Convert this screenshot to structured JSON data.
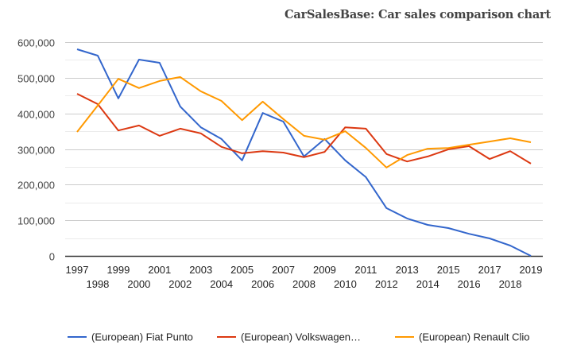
{
  "header": {
    "title": "CarSalesBase: Car sales comparison chart"
  },
  "chart_data": {
    "type": "line",
    "title": "CarSalesBase: Car sales comparison chart",
    "xlabel": "",
    "ylabel": "",
    "x": [
      1997,
      1998,
      1999,
      2000,
      2001,
      2002,
      2003,
      2004,
      2005,
      2006,
      2007,
      2008,
      2009,
      2010,
      2011,
      2012,
      2013,
      2014,
      2015,
      2016,
      2017,
      2018,
      2019
    ],
    "x_tick_labels": [
      "1997",
      "1998",
      "1999",
      "2000",
      "2001",
      "2002",
      "2003",
      "2004",
      "2005",
      "2006",
      "2007",
      "2008",
      "2009",
      "2010",
      "2011",
      "2012",
      "2013",
      "2014",
      "2015",
      "2016",
      "2017",
      "2018",
      "2019"
    ],
    "ylim": [
      0,
      600000
    ],
    "y_ticks": [
      0,
      100000,
      200000,
      300000,
      400000,
      500000,
      600000
    ],
    "y_tick_labels": [
      "0",
      "100,000",
      "200,000",
      "300,000",
      "400,000",
      "500,000",
      "600,000"
    ],
    "grid": true,
    "legend_position": "bottom",
    "series": [
      {
        "name": "(European) Fiat Punto",
        "color": "#3366cc",
        "values": [
          580000,
          562000,
          442000,
          551000,
          542000,
          419000,
          361000,
          328000,
          268000,
          401000,
          377000,
          279000,
          328000,
          268000,
          221000,
          134000,
          105000,
          87000,
          78000,
          62000,
          49000,
          29000,
          0
        ]
      },
      {
        "name": "(European) Volkswagen…",
        "color": "#dc3912",
        "values": [
          455000,
          426000,
          352000,
          366000,
          337000,
          357000,
          344000,
          306000,
          288000,
          294000,
          290000,
          277000,
          292000,
          361000,
          357000,
          286000,
          265000,
          279000,
          299000,
          308000,
          272000,
          294000,
          259000
        ]
      },
      {
        "name": "(European) Renault Clio",
        "color": "#ff9900",
        "values": [
          348000,
          422000,
          497000,
          471000,
          491000,
          502000,
          462000,
          435000,
          381000,
          433000,
          384000,
          337000,
          326000,
          350000,
          303000,
          248000,
          283000,
          301000,
          303000,
          312000,
          321000,
          330000,
          319000
        ]
      }
    ]
  }
}
